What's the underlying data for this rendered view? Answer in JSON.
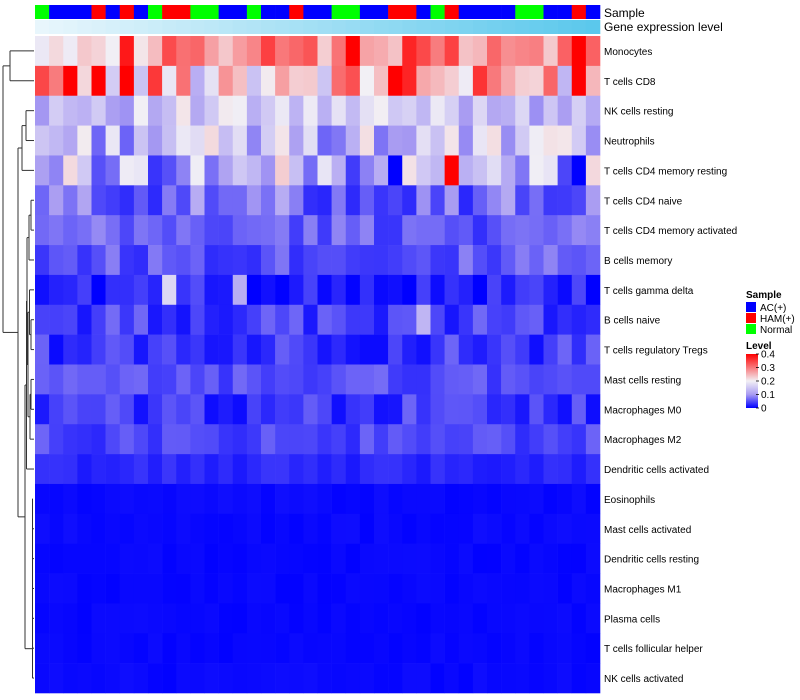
{
  "chart_data": {
    "type": "heatmap",
    "title": "",
    "annotation_tracks": [
      "Sample",
      "Gene expression level"
    ],
    "sample_legend": {
      "title": "Sample",
      "groups": [
        "AC(+)",
        "HAM(+)",
        "Normal"
      ],
      "colors": [
        "#0000ff",
        "#ff0000",
        "#00ff00"
      ]
    },
    "sample_groups": [
      2,
      0,
      0,
      0,
      1,
      0,
      1,
      0,
      2,
      1,
      1,
      2,
      2,
      0,
      0,
      2,
      0,
      0,
      1,
      0,
      0,
      2,
      2,
      0,
      0,
      1,
      1,
      0,
      2,
      1,
      0,
      0,
      0,
      0,
      2,
      2,
      0,
      0,
      1,
      0
    ],
    "expression_bar_colors": [
      "#e8f6fc",
      "#5bc8ec"
    ],
    "color_scale": {
      "title": "Level",
      "stops": [
        [
          0,
          "#0000ff"
        ],
        [
          0.1,
          "#a99cf2"
        ],
        [
          0.2,
          "#f2f0f5"
        ],
        [
          0.4,
          "#ff0000"
        ]
      ],
      "min": 0,
      "max": 0.4,
      "ticks": [
        "0.4",
        "0.3",
        "0.2",
        "0.1",
        "0"
      ]
    },
    "rows": [
      {
        "name": "Monocytes",
        "base": 0.27,
        "amp": 0.08
      },
      {
        "name": "T cells CD8",
        "base": 0.24,
        "amp": 0.12
      },
      {
        "name": "NK cells resting",
        "base": 0.15,
        "amp": 0.06
      },
      {
        "name": "Neutrophils",
        "base": 0.14,
        "amp": 0.08
      },
      {
        "name": "T cells CD4 memory resting",
        "base": 0.13,
        "amp": 0.1
      },
      {
        "name": "T cells CD4 naive",
        "base": 0.07,
        "amp": 0.05
      },
      {
        "name": "T cells CD4 memory activated",
        "base": 0.06,
        "amp": 0.03
      },
      {
        "name": "B cells memory",
        "base": 0.055,
        "amp": 0.03
      },
      {
        "name": "T cells gamma delta",
        "base": 0.02,
        "amp": 0.03
      },
      {
        "name": "B cells naive",
        "base": 0.04,
        "amp": 0.03
      },
      {
        "name": "T cells regulatory  Tregs",
        "base": 0.035,
        "amp": 0.03
      },
      {
        "name": "Mast cells resting",
        "base": 0.05,
        "amp": 0.02
      },
      {
        "name": "Macrophages M0",
        "base": 0.035,
        "amp": 0.03
      },
      {
        "name": "Macrophages M2",
        "base": 0.045,
        "amp": 0.02
      },
      {
        "name": "Dendritic cells activated",
        "base": 0.025,
        "amp": 0.01
      },
      {
        "name": "Eosinophils",
        "base": 0.005,
        "amp": 0.004
      },
      {
        "name": "Mast cells activated",
        "base": 0.005,
        "amp": 0.004
      },
      {
        "name": "Dendritic cells resting",
        "base": 0.004,
        "amp": 0.003
      },
      {
        "name": "Macrophages M1",
        "base": 0.004,
        "amp": 0.003
      },
      {
        "name": "Plasma cells",
        "base": 0.004,
        "amp": 0.003
      },
      {
        "name": "T cells follicular helper",
        "base": 0.004,
        "amp": 0.003
      },
      {
        "name": "NK cells activated",
        "base": 0.005,
        "amp": 0.004
      }
    ],
    "highlight_cells": [
      {
        "row": 0,
        "col": 6,
        "value": 0.38
      },
      {
        "row": 0,
        "col": 22,
        "value": 0.4
      },
      {
        "row": 0,
        "col": 26,
        "value": 0.37
      },
      {
        "row": 0,
        "col": 38,
        "value": 0.4
      },
      {
        "row": 1,
        "col": 2,
        "value": 0.4
      },
      {
        "row": 1,
        "col": 4,
        "value": 0.4
      },
      {
        "row": 1,
        "col": 6,
        "value": 0.4
      },
      {
        "row": 1,
        "col": 25,
        "value": 0.4
      },
      {
        "row": 1,
        "col": 26,
        "value": 0.37
      },
      {
        "row": 1,
        "col": 38,
        "value": 0.4
      },
      {
        "row": 4,
        "col": 25,
        "value": 0.0
      },
      {
        "row": 4,
        "col": 29,
        "value": 0.4
      },
      {
        "row": 4,
        "col": 38,
        "value": 0.0
      },
      {
        "row": 8,
        "col": 9,
        "value": 0.17
      },
      {
        "row": 8,
        "col": 14,
        "value": 0.12
      },
      {
        "row": 9,
        "col": 27,
        "value": 0.13
      }
    ]
  }
}
